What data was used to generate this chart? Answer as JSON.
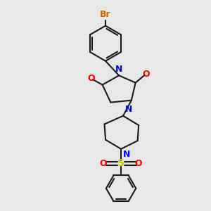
{
  "bg_color": "#e8e8e8",
  "bond_color": "#1a1a1a",
  "N_color": "#0000ff",
  "O_color": "#ff0000",
  "S_color": "#cccc00",
  "Br_color": "#cc6600",
  "lw": 1.5,
  "figsize": [
    3.0,
    3.0
  ],
  "dpi": 100,
  "xlim": [
    0,
    10
  ],
  "ylim": [
    0,
    10
  ]
}
